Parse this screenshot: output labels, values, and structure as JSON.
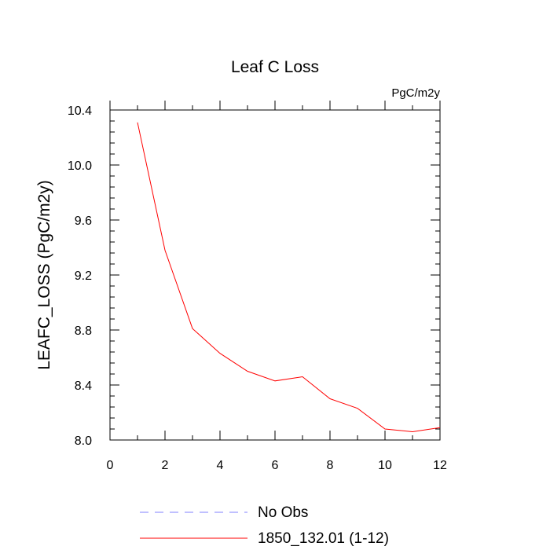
{
  "chart_data": {
    "type": "line",
    "title": "Leaf C Loss",
    "units": "PgC/m2y",
    "ylabel": "LEAFC_LOSS  (PgC/m2y)",
    "xlabel": "",
    "xlim": [
      0,
      12
    ],
    "ylim": [
      8.0,
      10.4
    ],
    "xticks": [
      0,
      2,
      4,
      6,
      8,
      10,
      12
    ],
    "xticklabels": [
      "0",
      "2",
      "4",
      "6",
      "8",
      "10",
      "12"
    ],
    "yticks": [
      8.0,
      8.4,
      8.8,
      9.2,
      9.6,
      10.0,
      10.4
    ],
    "yticklabels": [
      "8.0",
      "8.4",
      "8.8",
      "9.2",
      "9.6",
      "10.0",
      "10.4"
    ],
    "grid": false,
    "legend_position": "bottom",
    "series": [
      {
        "name": "1850_132.01 (1-12)",
        "color": "#ff0000",
        "style": "solid",
        "x": [
          1,
          2,
          3,
          4,
          5,
          6,
          7,
          8,
          9,
          10,
          11,
          12
        ],
        "y": [
          10.31,
          9.38,
          8.81,
          8.63,
          8.5,
          8.43,
          8.46,
          8.3,
          8.23,
          8.08,
          8.06,
          8.09
        ]
      }
    ],
    "legend": [
      {
        "label": "No Obs",
        "color": "#8080ff",
        "style": "dashed"
      },
      {
        "label": "1850_132.01 (1-12)",
        "color": "#ff0000",
        "style": "solid"
      }
    ]
  }
}
